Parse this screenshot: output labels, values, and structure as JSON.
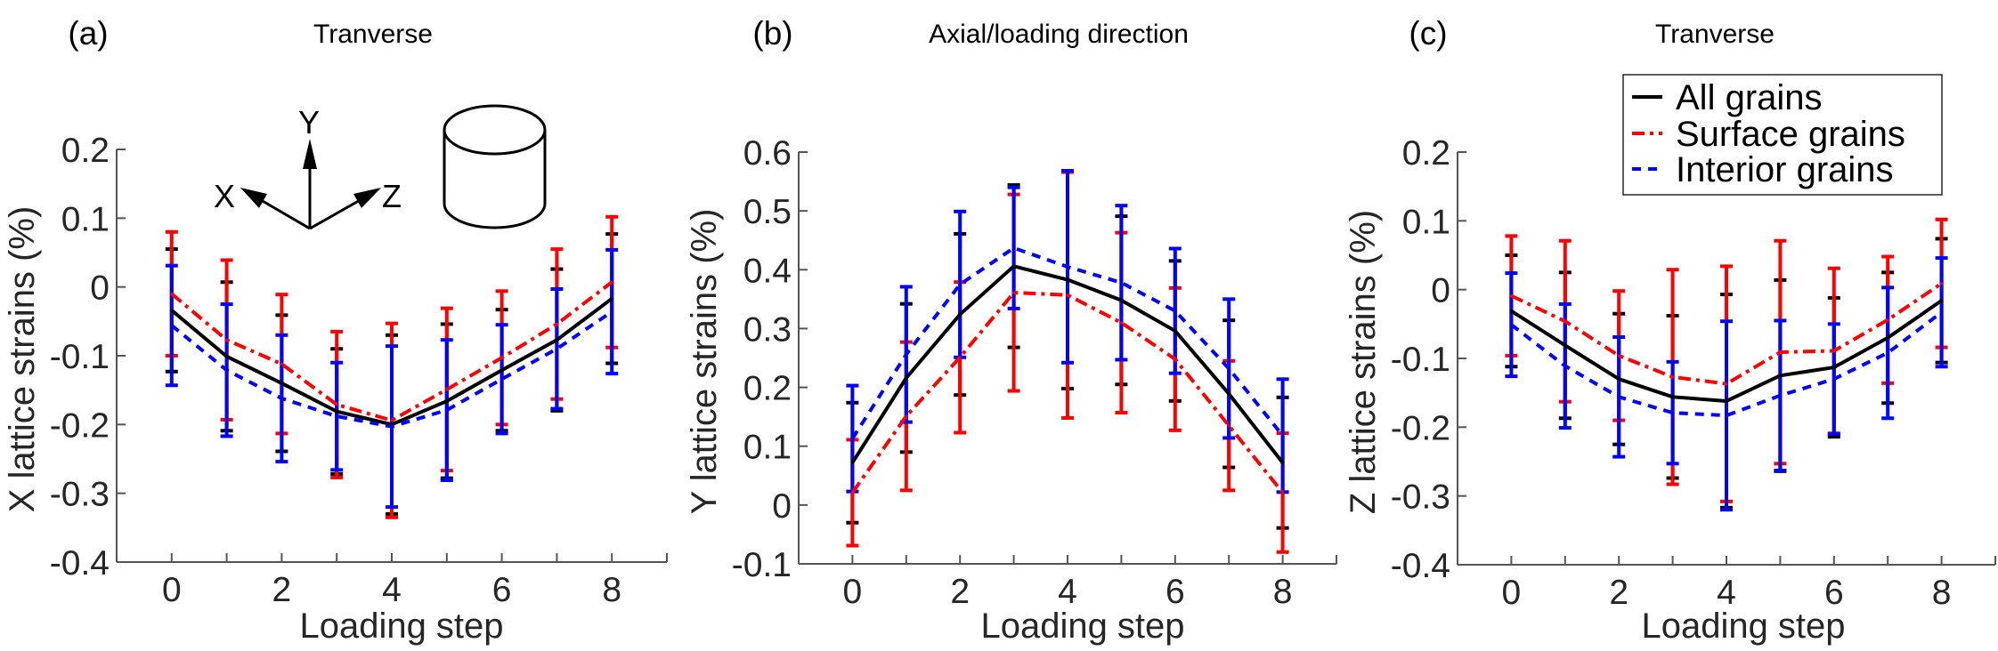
{
  "colors": {
    "all": "#000000",
    "surface": "#ff0000",
    "interior": "#0000ff",
    "axis": "#555555"
  },
  "legend": {
    "placement": "top-right (panel c)",
    "entries": [
      "All grains",
      "Surface grains",
      "Interior grains"
    ]
  },
  "inset": {
    "axis_labels": [
      "X",
      "Y",
      "Z"
    ],
    "icons": [
      "coordinate-axes-icon",
      "cylinder-sample-icon"
    ]
  },
  "chart_data": [
    {
      "type": "line",
      "panel_label": "(a)",
      "title": "Tranverse",
      "xlabel": "Loading step",
      "ylabel": "X lattice strains (%)",
      "xlim": [
        -1,
        9
      ],
      "ylim": [
        -0.4,
        0.2
      ],
      "xticks": [
        0,
        2,
        4,
        6,
        8
      ],
      "yticks": [
        -0.4,
        -0.3,
        -0.2,
        -0.1,
        0,
        0.1,
        0.2
      ],
      "ytick_labels": [
        "-0.4",
        "-0.3",
        "-0.2",
        "-0.1",
        "0",
        "0.1",
        "0.2"
      ],
      "grid": false,
      "x": [
        0,
        1,
        2,
        3,
        4,
        5,
        6,
        7,
        8
      ],
      "series": [
        {
          "name": "All grains",
          "style": "solid",
          "values": [
            -0.034,
            -0.101,
            -0.14,
            -0.181,
            -0.2,
            -0.166,
            -0.121,
            -0.077,
            -0.017
          ],
          "err": [
            0.089,
            0.108,
            0.099,
            0.091,
            0.13,
            0.112,
            0.088,
            0.103,
            0.094
          ]
        },
        {
          "name": "Surface grains",
          "style": "dash-dot",
          "values": [
            -0.01,
            -0.077,
            -0.112,
            -0.171,
            -0.194,
            -0.149,
            -0.103,
            -0.054,
            0.007
          ],
          "err": [
            0.09,
            0.116,
            0.101,
            0.106,
            0.141,
            0.118,
            0.097,
            0.109,
            0.095
          ]
        },
        {
          "name": "Interior grains",
          "style": "dashed",
          "values": [
            -0.056,
            -0.121,
            -0.162,
            -0.188,
            -0.203,
            -0.179,
            -0.134,
            -0.09,
            -0.036
          ],
          "err": [
            0.087,
            0.096,
            0.092,
            0.078,
            0.117,
            0.102,
            0.079,
            0.087,
            0.09
          ]
        }
      ]
    },
    {
      "type": "line",
      "panel_label": "(b)",
      "title": "Axial/loading direction",
      "xlabel": "Loading step",
      "ylabel": "Y lattice strains (%)",
      "xlim": [
        -1,
        9
      ],
      "ylim": [
        -0.1,
        0.6
      ],
      "xticks": [
        0,
        2,
        4,
        6,
        8
      ],
      "yticks": [
        -0.1,
        0,
        0.1,
        0.2,
        0.3,
        0.4,
        0.5,
        0.6
      ],
      "ytick_labels": [
        "-0.1",
        "0",
        "0.1",
        "0.2",
        "0.3",
        "0.4",
        "0.5",
        "0.6"
      ],
      "grid": false,
      "x": [
        0,
        1,
        2,
        3,
        4,
        5,
        6,
        7,
        8
      ],
      "series": [
        {
          "name": "All grains",
          "style": "solid",
          "values": [
            0.072,
            0.216,
            0.324,
            0.406,
            0.383,
            0.348,
            0.296,
            0.189,
            0.072
          ],
          "err": [
            0.102,
            0.126,
            0.137,
            0.138,
            0.185,
            0.143,
            0.119,
            0.125,
            0.111
          ]
        },
        {
          "name": "Surface grains",
          "style": "dash-dot",
          "values": [
            0.021,
            0.151,
            0.251,
            0.361,
            0.357,
            0.31,
            0.248,
            0.135,
            0.021
          ],
          "err": [
            0.09,
            0.126,
            0.128,
            0.167,
            0.209,
            0.153,
            0.121,
            0.11,
            0.101
          ]
        },
        {
          "name": "Interior grains",
          "style": "dashed",
          "values": [
            0.113,
            0.256,
            0.375,
            0.437,
            0.405,
            0.378,
            0.33,
            0.232,
            0.118
          ],
          "err": [
            0.09,
            0.115,
            0.124,
            0.103,
            0.163,
            0.131,
            0.106,
            0.118,
            0.096
          ]
        }
      ]
    },
    {
      "type": "line",
      "panel_label": "(c)",
      "title": "Tranverse",
      "xlabel": "Loading step",
      "ylabel": "Z lattice strains (%)",
      "xlim": [
        -1,
        9
      ],
      "ylim": [
        -0.4,
        0.2
      ],
      "xticks": [
        0,
        2,
        4,
        6,
        8
      ],
      "yticks": [
        -0.4,
        -0.3,
        -0.2,
        -0.1,
        0,
        0.1,
        0.2
      ],
      "ytick_labels": [
        "-0.4",
        "-0.3",
        "-0.2",
        "-0.1",
        "0",
        "0.1",
        "0.2"
      ],
      "grid": false,
      "x": [
        0,
        1,
        2,
        3,
        4,
        5,
        6,
        7,
        8
      ],
      "series": [
        {
          "name": "All grains",
          "style": "solid",
          "values": [
            -0.031,
            -0.081,
            -0.13,
            -0.156,
            -0.162,
            -0.125,
            -0.113,
            -0.07,
            -0.016
          ],
          "err": [
            0.081,
            0.106,
            0.095,
            0.118,
            0.155,
            0.139,
            0.101,
            0.095,
            0.09
          ]
        },
        {
          "name": "Surface grains",
          "style": "dash-dot",
          "values": [
            -0.009,
            -0.046,
            -0.096,
            -0.127,
            -0.137,
            -0.091,
            -0.089,
            -0.044,
            0.009
          ],
          "err": [
            0.087,
            0.117,
            0.094,
            0.156,
            0.171,
            0.162,
            0.12,
            0.092,
            0.093
          ]
        },
        {
          "name": "Interior grains",
          "style": "dashed",
          "values": [
            -0.051,
            -0.111,
            -0.156,
            -0.179,
            -0.183,
            -0.154,
            -0.13,
            -0.092,
            -0.033
          ],
          "err": [
            0.075,
            0.09,
            0.087,
            0.074,
            0.137,
            0.109,
            0.08,
            0.095,
            0.079
          ]
        }
      ]
    }
  ]
}
